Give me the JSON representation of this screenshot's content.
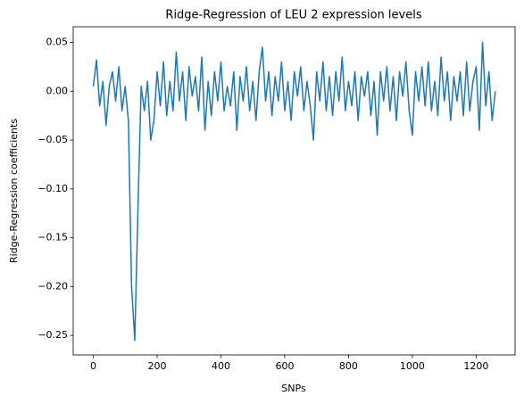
{
  "chart_data": {
    "type": "line",
    "title": "Ridge-Regression of LEU 2 expression levels",
    "x_label": "SNPs",
    "y_label": "Ridge-Regression coefficients",
    "color": "#1f77b4",
    "x": [
      0,
      10,
      20,
      30,
      40,
      50,
      60,
      70,
      80,
      90,
      100,
      110,
      120,
      130,
      140,
      150,
      160,
      170,
      180,
      190,
      200,
      210,
      220,
      230,
      240,
      250,
      260,
      270,
      280,
      290,
      300,
      310,
      320,
      330,
      340,
      350,
      360,
      370,
      380,
      390,
      400,
      410,
      420,
      430,
      440,
      450,
      460,
      470,
      480,
      490,
      500,
      510,
      520,
      530,
      540,
      550,
      560,
      570,
      580,
      590,
      600,
      610,
      620,
      630,
      640,
      650,
      660,
      670,
      680,
      690,
      700,
      710,
      720,
      730,
      740,
      750,
      760,
      770,
      780,
      790,
      800,
      810,
      820,
      830,
      840,
      850,
      860,
      870,
      880,
      890,
      900,
      910,
      920,
      930,
      940,
      950,
      960,
      970,
      980,
      990,
      1000,
      1010,
      1020,
      1030,
      1040,
      1050,
      1060,
      1070,
      1080,
      1090,
      1100,
      1110,
      1120,
      1130,
      1140,
      1150,
      1160,
      1170,
      1180,
      1190,
      1200,
      1210,
      1220,
      1230,
      1240,
      1250,
      1260
    ],
    "values": [
      0.005,
      0.032,
      -0.015,
      0.01,
      -0.035,
      0.005,
      0.02,
      -0.01,
      0.025,
      -0.02,
      0.005,
      -0.03,
      -0.2,
      -0.255,
      -0.12,
      0.005,
      -0.02,
      0.01,
      -0.05,
      -0.03,
      0.02,
      -0.015,
      0.03,
      -0.025,
      0.01,
      -0.02,
      0.04,
      -0.01,
      0.02,
      -0.03,
      0.025,
      -0.005,
      0.015,
      -0.02,
      0.035,
      -0.04,
      0.01,
      -0.025,
      0.02,
      -0.01,
      0.03,
      -0.02,
      0.005,
      -0.015,
      0.02,
      -0.04,
      0.015,
      -0.01,
      0.025,
      -0.02,
      0.01,
      -0.03,
      0.02,
      0.045,
      -0.01,
      0.02,
      -0.025,
      0.015,
      -0.01,
      0.03,
      -0.02,
      0.01,
      -0.03,
      0.02,
      -0.005,
      0.025,
      -0.02,
      0.01,
      -0.015,
      -0.05,
      0.02,
      -0.01,
      0.03,
      -0.02,
      0.015,
      -0.025,
      0.02,
      -0.01,
      0.035,
      -0.02,
      0.01,
      -0.015,
      0.02,
      -0.03,
      0.015,
      -0.005,
      0.02,
      -0.025,
      0.01,
      -0.045,
      0.02,
      -0.01,
      0.025,
      -0.02,
      0.015,
      -0.03,
      0.02,
      -0.005,
      0.03,
      -0.02,
      -0.045,
      0.02,
      -0.01,
      0.025,
      -0.015,
      0.03,
      -0.02,
      0.01,
      -0.025,
      0.035,
      -0.01,
      0.02,
      -0.03,
      0.015,
      -0.01,
      0.02,
      -0.025,
      0.03,
      -0.02,
      0.01,
      0.025,
      -0.04,
      0.05,
      -0.015,
      0.02,
      -0.03,
      0.0
    ],
    "xlim": [
      -63,
      1322
    ],
    "ylim": [
      -0.27,
      0.066
    ],
    "xticks": [
      0,
      200,
      400,
      600,
      800,
      1000,
      1200
    ],
    "yticks": [
      {
        "value": 0.05,
        "label": "0.05"
      },
      {
        "value": 0.0,
        "label": "0.00"
      },
      {
        "value": -0.05,
        "label": "−0.05"
      },
      {
        "value": -0.1,
        "label": "−0.10"
      },
      {
        "value": -0.15,
        "label": "−0.15"
      },
      {
        "value": -0.2,
        "label": "−0.20"
      },
      {
        "value": -0.25,
        "label": "−0.25"
      }
    ],
    "grid": false
  }
}
